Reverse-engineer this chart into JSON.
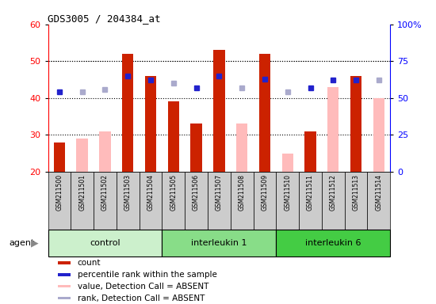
{
  "title": "GDS3005 / 204384_at",
  "samples": [
    "GSM211500",
    "GSM211501",
    "GSM211502",
    "GSM211503",
    "GSM211504",
    "GSM211505",
    "GSM211506",
    "GSM211507",
    "GSM211508",
    "GSM211509",
    "GSM211510",
    "GSM211511",
    "GSM211512",
    "GSM211513",
    "GSM211514"
  ],
  "groups": [
    {
      "label": "control",
      "start": 0,
      "end": 5,
      "color": "#ccf0cc"
    },
    {
      "label": "interleukin 1",
      "start": 5,
      "end": 10,
      "color": "#88dd88"
    },
    {
      "label": "interleukin 6",
      "start": 10,
      "end": 15,
      "color": "#44cc44"
    }
  ],
  "red_bars": [
    28,
    null,
    null,
    52,
    46,
    39,
    33,
    53,
    null,
    52,
    null,
    31,
    null,
    46,
    40
  ],
  "pink_bars": [
    null,
    29,
    31,
    null,
    null,
    null,
    null,
    null,
    33,
    null,
    25,
    null,
    43,
    null,
    40
  ],
  "blue_squares_pct": [
    54,
    null,
    null,
    65,
    62,
    null,
    57,
    65,
    null,
    63,
    null,
    57,
    62,
    62,
    null
  ],
  "lavender_squares_pct": [
    null,
    54,
    56,
    null,
    null,
    60,
    null,
    null,
    57,
    null,
    54,
    null,
    null,
    null,
    62
  ],
  "ylim_left": [
    20,
    60
  ],
  "ylim_right": [
    0,
    100
  ],
  "yticks_left": [
    20,
    30,
    40,
    50,
    60
  ],
  "yticks_right": [
    0,
    25,
    50,
    75,
    100
  ],
  "ytick_labels_right": [
    "0",
    "25",
    "50",
    "75",
    "100%"
  ],
  "bar_width": 0.5,
  "red_color": "#cc2200",
  "pink_color": "#ffbbbb",
  "blue_color": "#2222cc",
  "lavender_color": "#aaaacc",
  "tick_bg": "#cccccc",
  "agent_arrow_color": "#888888"
}
